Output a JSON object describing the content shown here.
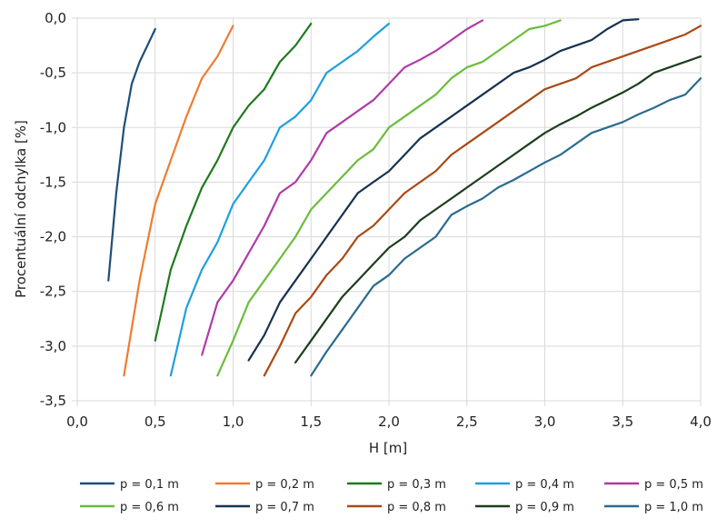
{
  "chart_data": {
    "type": "line",
    "xlabel": "H [m]",
    "ylabel": "Procentuální odchylka [%]",
    "xlim": [
      0,
      4
    ],
    "ylim": [
      -3.5,
      0
    ],
    "x_ticks": [
      "0,0",
      "0,5",
      "1,0",
      "1,5",
      "2,0",
      "2,5",
      "3,0",
      "3,5",
      "4,0"
    ],
    "y_ticks": [
      "0,0",
      "-0,5",
      "-1,0",
      "-1,5",
      "-2,0",
      "-2,5",
      "-3,0",
      "-3,5"
    ],
    "grid": "horizontal and vertical",
    "legend_position": "bottom",
    "series": [
      {
        "name": "p = 0,1 m",
        "color": "#1f4e79",
        "points": [
          [
            0.2,
            -2.4
          ],
          [
            0.25,
            -1.6
          ],
          [
            0.3,
            -1.0
          ],
          [
            0.35,
            -0.6
          ],
          [
            0.4,
            -0.4
          ],
          [
            0.45,
            -0.25
          ],
          [
            0.5,
            -0.1
          ]
        ]
      },
      {
        "name": "p = 0,2 m",
        "color": "#ed7d31",
        "points": [
          [
            0.3,
            -3.27
          ],
          [
            0.4,
            -2.4
          ],
          [
            0.5,
            -1.7
          ],
          [
            0.6,
            -1.3
          ],
          [
            0.7,
            -0.9
          ],
          [
            0.8,
            -0.55
          ],
          [
            0.9,
            -0.35
          ],
          [
            1.0,
            -0.07
          ]
        ]
      },
      {
        "name": "p = 0,3 m",
        "color": "#1e7a1e",
        "points": [
          [
            0.5,
            -2.95
          ],
          [
            0.6,
            -2.3
          ],
          [
            0.7,
            -1.9
          ],
          [
            0.8,
            -1.55
          ],
          [
            0.9,
            -1.3
          ],
          [
            1.0,
            -1.0
          ],
          [
            1.1,
            -0.8
          ],
          [
            1.2,
            -0.65
          ],
          [
            1.3,
            -0.4
          ],
          [
            1.4,
            -0.25
          ],
          [
            1.5,
            -0.05
          ]
        ]
      },
      {
        "name": "p = 0,4 m",
        "color": "#1f9fe0",
        "points": [
          [
            0.6,
            -3.27
          ],
          [
            0.7,
            -2.65
          ],
          [
            0.8,
            -2.3
          ],
          [
            0.9,
            -2.05
          ],
          [
            1.0,
            -1.7
          ],
          [
            1.1,
            -1.5
          ],
          [
            1.2,
            -1.3
          ],
          [
            1.3,
            -1.0
          ],
          [
            1.4,
            -0.9
          ],
          [
            1.5,
            -0.75
          ],
          [
            1.6,
            -0.5
          ],
          [
            1.7,
            -0.4
          ],
          [
            1.8,
            -0.3
          ],
          [
            1.9,
            -0.17
          ],
          [
            2.0,
            -0.05
          ]
        ]
      },
      {
        "name": "p = 0,5 m",
        "color": "#b03ba6",
        "points": [
          [
            0.8,
            -3.08
          ],
          [
            0.9,
            -2.6
          ],
          [
            1.0,
            -2.4
          ],
          [
            1.1,
            -2.15
          ],
          [
            1.2,
            -1.9
          ],
          [
            1.3,
            -1.6
          ],
          [
            1.4,
            -1.5
          ],
          [
            1.5,
            -1.3
          ],
          [
            1.6,
            -1.05
          ],
          [
            1.7,
            -0.95
          ],
          [
            1.8,
            -0.85
          ],
          [
            1.9,
            -0.75
          ],
          [
            2.0,
            -0.6
          ],
          [
            2.1,
            -0.45
          ],
          [
            2.2,
            -0.38
          ],
          [
            2.3,
            -0.3
          ],
          [
            2.4,
            -0.2
          ],
          [
            2.5,
            -0.1
          ],
          [
            2.6,
            -0.02
          ]
        ]
      },
      {
        "name": "p = 0,6 m",
        "color": "#6bbd3b",
        "points": [
          [
            0.9,
            -3.27
          ],
          [
            1.0,
            -2.95
          ],
          [
            1.1,
            -2.6
          ],
          [
            1.2,
            -2.4
          ],
          [
            1.3,
            -2.2
          ],
          [
            1.4,
            -2.0
          ],
          [
            1.5,
            -1.75
          ],
          [
            1.6,
            -1.6
          ],
          [
            1.7,
            -1.45
          ],
          [
            1.8,
            -1.3
          ],
          [
            1.9,
            -1.2
          ],
          [
            2.0,
            -1.0
          ],
          [
            2.1,
            -0.9
          ],
          [
            2.2,
            -0.8
          ],
          [
            2.3,
            -0.7
          ],
          [
            2.4,
            -0.55
          ],
          [
            2.5,
            -0.45
          ],
          [
            2.6,
            -0.4
          ],
          [
            2.7,
            -0.3
          ],
          [
            2.8,
            -0.2
          ],
          [
            2.9,
            -0.1
          ],
          [
            3.0,
            -0.07
          ],
          [
            3.1,
            -0.02
          ]
        ]
      },
      {
        "name": "p = 0,7 m",
        "color": "#17324f",
        "points": [
          [
            1.1,
            -3.13
          ],
          [
            1.2,
            -2.9
          ],
          [
            1.3,
            -2.6
          ],
          [
            1.4,
            -2.4
          ],
          [
            1.5,
            -2.2
          ],
          [
            1.6,
            -2.0
          ],
          [
            1.7,
            -1.8
          ],
          [
            1.8,
            -1.6
          ],
          [
            1.9,
            -1.5
          ],
          [
            2.0,
            -1.4
          ],
          [
            2.1,
            -1.25
          ],
          [
            2.2,
            -1.1
          ],
          [
            2.3,
            -1.0
          ],
          [
            2.4,
            -0.9
          ],
          [
            2.5,
            -0.8
          ],
          [
            2.6,
            -0.7
          ],
          [
            2.7,
            -0.6
          ],
          [
            2.8,
            -0.5
          ],
          [
            2.9,
            -0.45
          ],
          [
            3.0,
            -0.38
          ],
          [
            3.1,
            -0.3
          ],
          [
            3.2,
            -0.25
          ],
          [
            3.3,
            -0.2
          ],
          [
            3.4,
            -0.1
          ],
          [
            3.5,
            -0.02
          ],
          [
            3.6,
            -0.01
          ]
        ]
      },
      {
        "name": "p = 0,8 m",
        "color": "#a84a15",
        "points": [
          [
            1.2,
            -3.27
          ],
          [
            1.3,
            -3.0
          ],
          [
            1.4,
            -2.7
          ],
          [
            1.5,
            -2.55
          ],
          [
            1.6,
            -2.35
          ],
          [
            1.7,
            -2.2
          ],
          [
            1.8,
            -2.0
          ],
          [
            1.9,
            -1.9
          ],
          [
            2.0,
            -1.75
          ],
          [
            2.1,
            -1.6
          ],
          [
            2.2,
            -1.5
          ],
          [
            2.3,
            -1.4
          ],
          [
            2.4,
            -1.25
          ],
          [
            2.5,
            -1.15
          ],
          [
            2.6,
            -1.05
          ],
          [
            2.7,
            -0.95
          ],
          [
            2.8,
            -0.85
          ],
          [
            2.9,
            -0.75
          ],
          [
            3.0,
            -0.65
          ],
          [
            3.1,
            -0.6
          ],
          [
            3.2,
            -0.55
          ],
          [
            3.3,
            -0.45
          ],
          [
            3.4,
            -0.4
          ],
          [
            3.5,
            -0.35
          ],
          [
            3.6,
            -0.3
          ],
          [
            3.7,
            -0.25
          ],
          [
            3.8,
            -0.2
          ],
          [
            3.9,
            -0.15
          ],
          [
            4.0,
            -0.07
          ]
        ]
      },
      {
        "name": "p = 0,9 m",
        "color": "#1c3d1c",
        "points": [
          [
            1.4,
            -3.15
          ],
          [
            1.5,
            -2.95
          ],
          [
            1.6,
            -2.75
          ],
          [
            1.7,
            -2.55
          ],
          [
            1.8,
            -2.4
          ],
          [
            1.9,
            -2.25
          ],
          [
            2.0,
            -2.1
          ],
          [
            2.1,
            -2.0
          ],
          [
            2.2,
            -1.85
          ],
          [
            2.3,
            -1.75
          ],
          [
            2.4,
            -1.65
          ],
          [
            2.5,
            -1.55
          ],
          [
            2.6,
            -1.45
          ],
          [
            2.7,
            -1.35
          ],
          [
            2.8,
            -1.25
          ],
          [
            2.9,
            -1.15
          ],
          [
            3.0,
            -1.05
          ],
          [
            3.1,
            -0.97
          ],
          [
            3.2,
            -0.9
          ],
          [
            3.3,
            -0.82
          ],
          [
            3.4,
            -0.75
          ],
          [
            3.5,
            -0.68
          ],
          [
            3.6,
            -0.6
          ],
          [
            3.7,
            -0.5
          ],
          [
            3.8,
            -0.45
          ],
          [
            3.9,
            -0.4
          ],
          [
            4.0,
            -0.35
          ]
        ]
      },
      {
        "name": "p = 1,0 m",
        "color": "#2b6a8f",
        "points": [
          [
            1.5,
            -3.27
          ],
          [
            1.6,
            -3.05
          ],
          [
            1.7,
            -2.85
          ],
          [
            1.8,
            -2.65
          ],
          [
            1.9,
            -2.45
          ],
          [
            2.0,
            -2.35
          ],
          [
            2.1,
            -2.2
          ],
          [
            2.2,
            -2.1
          ],
          [
            2.3,
            -2.0
          ],
          [
            2.4,
            -1.8
          ],
          [
            2.5,
            -1.72
          ],
          [
            2.6,
            -1.65
          ],
          [
            2.7,
            -1.55
          ],
          [
            2.8,
            -1.48
          ],
          [
            2.9,
            -1.4
          ],
          [
            3.0,
            -1.32
          ],
          [
            3.1,
            -1.25
          ],
          [
            3.2,
            -1.15
          ],
          [
            3.3,
            -1.05
          ],
          [
            3.4,
            -1.0
          ],
          [
            3.5,
            -0.95
          ],
          [
            3.6,
            -0.88
          ],
          [
            3.7,
            -0.82
          ],
          [
            3.8,
            -0.75
          ],
          [
            3.9,
            -0.7
          ],
          [
            4.0,
            -0.55
          ]
        ]
      }
    ]
  }
}
